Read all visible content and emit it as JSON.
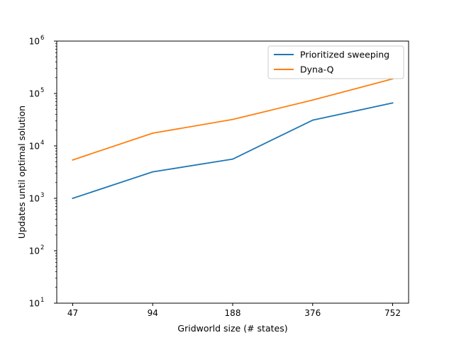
{
  "chart_data": {
    "type": "line",
    "title": "",
    "xlabel": "Gridworld size (# states)",
    "ylabel": "Updates until optimal solution",
    "categories": [
      "47",
      "94",
      "188",
      "376",
      "752"
    ],
    "y_scale": "log",
    "ylim": [
      10,
      1000000
    ],
    "y_ticks": [
      {
        "value": 10,
        "base": "10",
        "exp": "1"
      },
      {
        "value": 100,
        "base": "10",
        "exp": "2"
      },
      {
        "value": 1000,
        "base": "10",
        "exp": "3"
      },
      {
        "value": 10000,
        "base": "10",
        "exp": "4"
      },
      {
        "value": 100000,
        "base": "10",
        "exp": "5"
      },
      {
        "value": 1000000,
        "base": "10",
        "exp": "6"
      }
    ],
    "grid": false,
    "legend_position": "top-right",
    "series": [
      {
        "name": "Prioritized sweeping",
        "color": "#1f77b4",
        "values": [
          1000,
          3200,
          5600,
          31000,
          66000
        ]
      },
      {
        "name": "Dyna-Q",
        "color": "#ff7f0e",
        "values": [
          5400,
          17500,
          32000,
          75000,
          190000
        ]
      }
    ]
  }
}
